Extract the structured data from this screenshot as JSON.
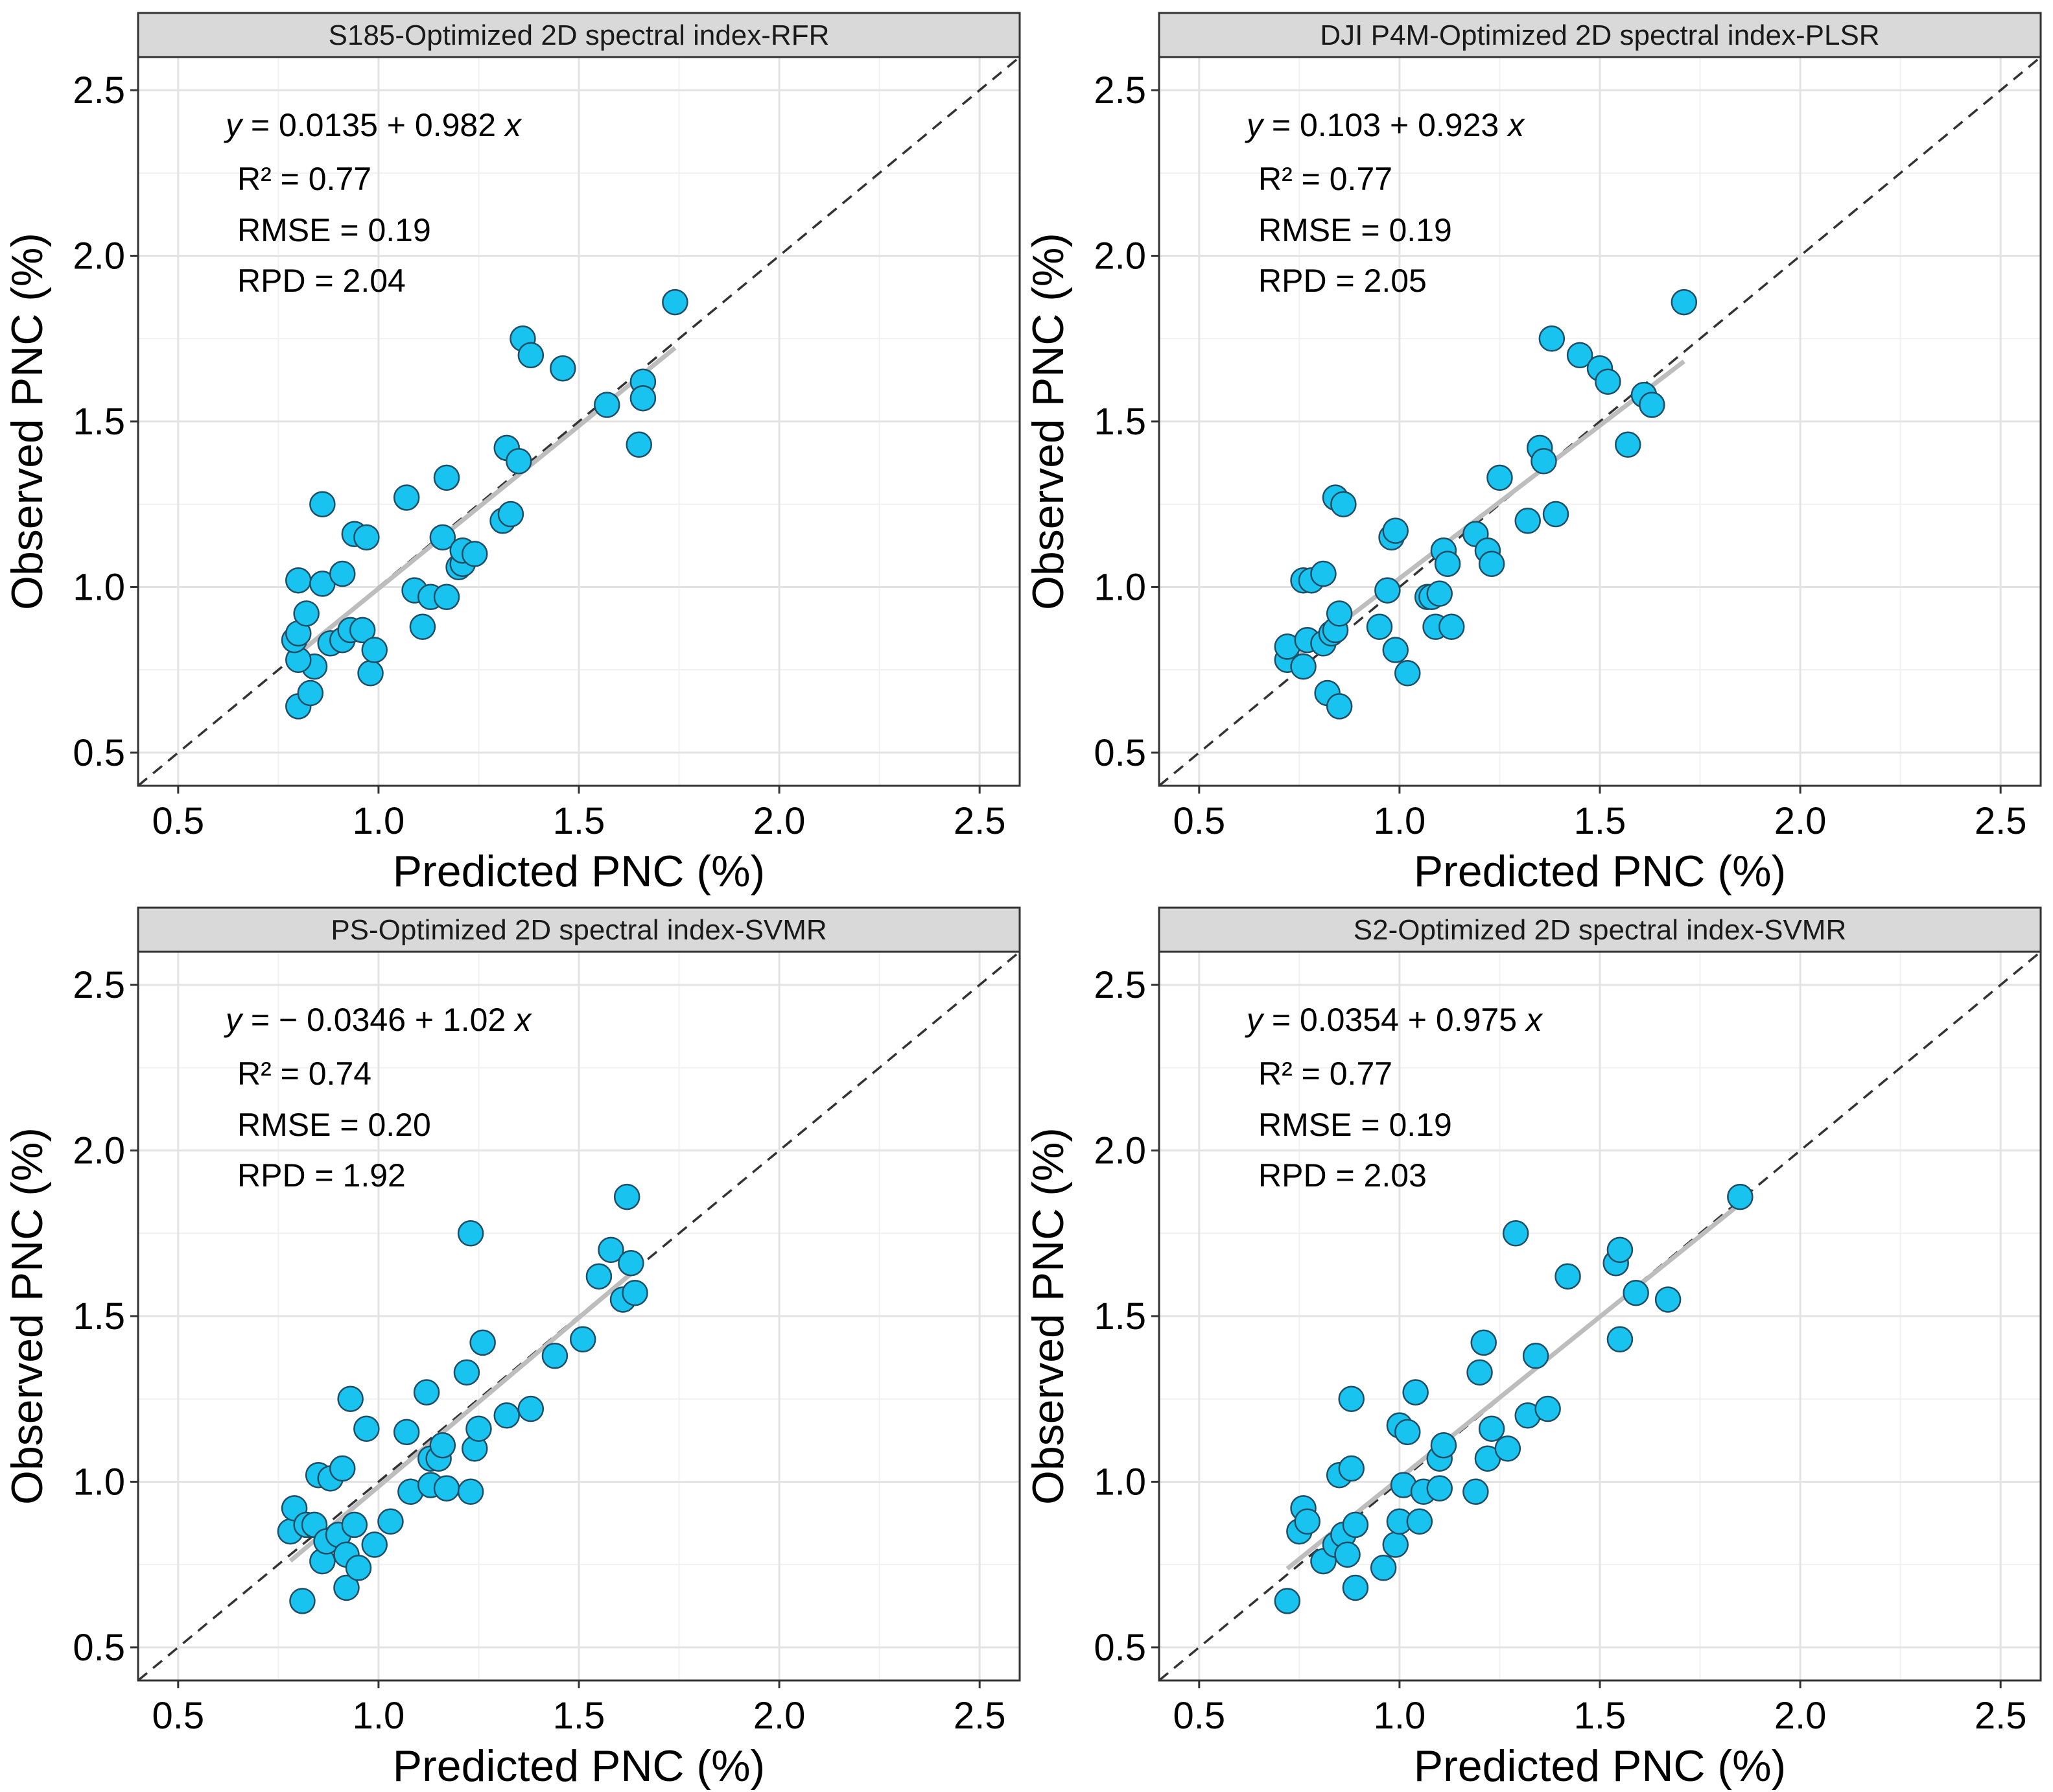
{
  "chart_data": [
    {
      "type": "scatter",
      "title": "S185-Optimized 2D spectral index-RFR",
      "xlabel": "Predicted PNC (%)",
      "ylabel": "Observed PNC (%)",
      "xlim": [
        0.4,
        2.6
      ],
      "ylim": [
        0.4,
        2.6
      ],
      "ticks": [
        "0.5",
        "1.0",
        "1.5",
        "2.0",
        "2.5"
      ],
      "equation": {
        "y": "y",
        "rhs": " = 0.0135 + 0.982 ",
        "x": "x"
      },
      "fit": {
        "intercept": 0.0135,
        "slope": 0.982
      },
      "fit_range": [
        0.8,
        1.74
      ],
      "stats": {
        "r2": "R² =  0.77",
        "rmse": "RMSE =  0.19",
        "rpd": "RPD =  2.04"
      },
      "points": [
        [
          0.8,
          0.64
        ],
        [
          0.83,
          0.68
        ],
        [
          0.84,
          0.76
        ],
        [
          0.8,
          0.78
        ],
        [
          0.79,
          0.84
        ],
        [
          0.8,
          0.86
        ],
        [
          0.82,
          0.92
        ],
        [
          0.8,
          1.02
        ],
        [
          0.86,
          1.01
        ],
        [
          0.91,
          1.04
        ],
        [
          0.88,
          0.83
        ],
        [
          0.91,
          0.84
        ],
        [
          0.93,
          0.87
        ],
        [
          0.96,
          0.87
        ],
        [
          0.98,
          0.74
        ],
        [
          0.99,
          0.81
        ],
        [
          0.86,
          1.25
        ],
        [
          0.94,
          1.16
        ],
        [
          0.97,
          1.15
        ],
        [
          1.07,
          1.27
        ],
        [
          1.09,
          0.99
        ],
        [
          1.11,
          0.88
        ],
        [
          1.13,
          0.97
        ],
        [
          1.17,
          0.97
        ],
        [
          1.16,
          1.15
        ],
        [
          1.17,
          1.33
        ],
        [
          1.2,
          1.06
        ],
        [
          1.21,
          1.07
        ],
        [
          1.21,
          1.11
        ],
        [
          1.24,
          1.1
        ],
        [
          1.31,
          1.2
        ],
        [
          1.32,
          1.42
        ],
        [
          1.33,
          1.22
        ],
        [
          1.35,
          1.38
        ],
        [
          1.36,
          1.75
        ],
        [
          1.38,
          1.7
        ],
        [
          1.46,
          1.66
        ],
        [
          1.57,
          1.55
        ],
        [
          1.65,
          1.43
        ],
        [
          1.66,
          1.62
        ],
        [
          1.66,
          1.57
        ],
        [
          1.74,
          1.86
        ]
      ]
    },
    {
      "type": "scatter",
      "title": "DJI P4M-Optimized 2D spectral index-PLSR",
      "xlabel": "Predicted PNC (%)",
      "ylabel": "Observed PNC (%)",
      "xlim": [
        0.4,
        2.6
      ],
      "ylim": [
        0.4,
        2.6
      ],
      "ticks": [
        "0.5",
        "1.0",
        "1.5",
        "2.0",
        "2.5"
      ],
      "equation": {
        "y": "y",
        "rhs": " = 0.103 + 0.923 ",
        "x": "x"
      },
      "fit": {
        "intercept": 0.103,
        "slope": 0.923
      },
      "fit_range": [
        0.72,
        1.71
      ],
      "stats": {
        "r2": "R² =  0.77",
        "rmse": "RMSE =  0.19",
        "rpd": "RPD =  2.05"
      },
      "points": [
        [
          0.72,
          0.78
        ],
        [
          0.72,
          0.82
        ],
        [
          0.76,
          0.76
        ],
        [
          0.77,
          0.84
        ],
        [
          0.76,
          1.02
        ],
        [
          0.78,
          1.02
        ],
        [
          0.81,
          1.04
        ],
        [
          0.81,
          0.83
        ],
        [
          0.82,
          0.68
        ],
        [
          0.83,
          0.86
        ],
        [
          0.85,
          0.64
        ],
        [
          0.84,
          0.87
        ],
        [
          0.85,
          0.92
        ],
        [
          0.84,
          1.27
        ],
        [
          0.86,
          1.25
        ],
        [
          0.95,
          0.88
        ],
        [
          0.97,
          0.99
        ],
        [
          0.98,
          1.15
        ],
        [
          0.99,
          1.17
        ],
        [
          0.99,
          0.81
        ],
        [
          1.02,
          0.74
        ],
        [
          1.07,
          0.97
        ],
        [
          1.08,
          0.97
        ],
        [
          1.09,
          0.88
        ],
        [
          1.1,
          0.98
        ],
        [
          1.11,
          1.11
        ],
        [
          1.12,
          1.07
        ],
        [
          1.13,
          0.88
        ],
        [
          1.19,
          1.16
        ],
        [
          1.22,
          1.11
        ],
        [
          1.23,
          1.07
        ],
        [
          1.25,
          1.33
        ],
        [
          1.32,
          1.2
        ],
        [
          1.35,
          1.42
        ],
        [
          1.36,
          1.38
        ],
        [
          1.38,
          1.75
        ],
        [
          1.39,
          1.22
        ],
        [
          1.45,
          1.7
        ],
        [
          1.5,
          1.66
        ],
        [
          1.52,
          1.62
        ],
        [
          1.57,
          1.43
        ],
        [
          1.61,
          1.58
        ],
        [
          1.63,
          1.55
        ],
        [
          1.71,
          1.86
        ]
      ]
    },
    {
      "type": "scatter",
      "title": "PS-Optimized 2D spectral index-SVMR",
      "xlabel": "Predicted PNC (%)",
      "ylabel": "Observed PNC (%)",
      "xlim": [
        0.4,
        2.6
      ],
      "ylim": [
        0.4,
        2.6
      ],
      "ticks": [
        "0.5",
        "1.0",
        "1.5",
        "2.0",
        "2.5"
      ],
      "equation": {
        "y": "y",
        "rhs": " = − 0.0346 + 1.02 ",
        "x": "x"
      },
      "fit": {
        "intercept": -0.0346,
        "slope": 1.02
      },
      "fit_range": [
        0.78,
        1.64
      ],
      "stats": {
        "r2": "R² =  0.74",
        "rmse": "RMSE =  0.20",
        "rpd": "RPD =  1.92"
      },
      "points": [
        [
          0.78,
          0.85
        ],
        [
          0.79,
          0.92
        ],
        [
          0.81,
          0.64
        ],
        [
          0.82,
          0.87
        ],
        [
          0.84,
          0.87
        ],
        [
          0.85,
          1.02
        ],
        [
          0.86,
          0.76
        ],
        [
          0.87,
          0.82
        ],
        [
          0.88,
          1.01
        ],
        [
          0.9,
          0.84
        ],
        [
          0.91,
          1.04
        ],
        [
          0.92,
          0.68
        ],
        [
          0.92,
          0.78
        ],
        [
          0.93,
          1.25
        ],
        [
          0.94,
          0.87
        ],
        [
          0.95,
          0.74
        ],
        [
          0.97,
          1.16
        ],
        [
          0.99,
          0.81
        ],
        [
          1.03,
          0.88
        ],
        [
          1.07,
          1.15
        ],
        [
          1.08,
          0.97
        ],
        [
          1.12,
          1.27
        ],
        [
          1.13,
          0.99
        ],
        [
          1.13,
          1.07
        ],
        [
          1.15,
          1.07
        ],
        [
          1.16,
          1.11
        ],
        [
          1.17,
          0.98
        ],
        [
          1.22,
          1.33
        ],
        [
          1.23,
          0.97
        ],
        [
          1.23,
          1.75
        ],
        [
          1.24,
          1.1
        ],
        [
          1.25,
          1.16
        ],
        [
          1.26,
          1.42
        ],
        [
          1.32,
          1.2
        ],
        [
          1.38,
          1.22
        ],
        [
          1.44,
          1.38
        ],
        [
          1.51,
          1.43
        ],
        [
          1.55,
          1.62
        ],
        [
          1.58,
          1.7
        ],
        [
          1.61,
          1.55
        ],
        [
          1.62,
          1.86
        ],
        [
          1.63,
          1.66
        ],
        [
          1.64,
          1.57
        ]
      ]
    },
    {
      "type": "scatter",
      "title": "S2-Optimized 2D spectral index-SVMR",
      "xlabel": "Predicted PNC (%)",
      "ylabel": "Observed PNC (%)",
      "xlim": [
        0.4,
        2.6
      ],
      "ylim": [
        0.4,
        2.6
      ],
      "ticks": [
        "0.5",
        "1.0",
        "1.5",
        "2.0",
        "2.5"
      ],
      "equation": {
        "y": "y",
        "rhs": " = 0.0354 + 0.975 ",
        "x": "x"
      },
      "fit": {
        "intercept": 0.0354,
        "slope": 0.975
      },
      "fit_range": [
        0.72,
        1.85
      ],
      "stats": {
        "r2": "R² =  0.77",
        "rmse": "RMSE =  0.19",
        "rpd": "RPD =  2.03"
      },
      "points": [
        [
          0.72,
          0.64
        ],
        [
          0.75,
          0.85
        ],
        [
          0.76,
          0.92
        ],
        [
          0.77,
          0.88
        ],
        [
          0.81,
          0.76
        ],
        [
          0.84,
          0.81
        ],
        [
          0.85,
          1.02
        ],
        [
          0.86,
          0.84
        ],
        [
          0.87,
          0.78
        ],
        [
          0.88,
          1.04
        ],
        [
          0.88,
          1.25
        ],
        [
          0.89,
          0.68
        ],
        [
          0.89,
          0.87
        ],
        [
          0.96,
          0.74
        ],
        [
          0.99,
          0.81
        ],
        [
          1.0,
          0.88
        ],
        [
          1.0,
          1.17
        ],
        [
          1.01,
          0.99
        ],
        [
          1.02,
          1.15
        ],
        [
          1.04,
          1.27
        ],
        [
          1.05,
          0.88
        ],
        [
          1.06,
          0.97
        ],
        [
          1.1,
          0.98
        ],
        [
          1.1,
          1.07
        ],
        [
          1.11,
          1.11
        ],
        [
          1.19,
          0.97
        ],
        [
          1.2,
          1.33
        ],
        [
          1.21,
          1.42
        ],
        [
          1.22,
          1.07
        ],
        [
          1.23,
          1.16
        ],
        [
          1.27,
          1.1
        ],
        [
          1.29,
          1.75
        ],
        [
          1.32,
          1.2
        ],
        [
          1.34,
          1.38
        ],
        [
          1.37,
          1.22
        ],
        [
          1.42,
          1.62
        ],
        [
          1.54,
          1.66
        ],
        [
          1.55,
          1.7
        ],
        [
          1.55,
          1.43
        ],
        [
          1.59,
          1.57
        ],
        [
          1.67,
          1.55
        ],
        [
          1.85,
          1.86
        ]
      ]
    }
  ]
}
